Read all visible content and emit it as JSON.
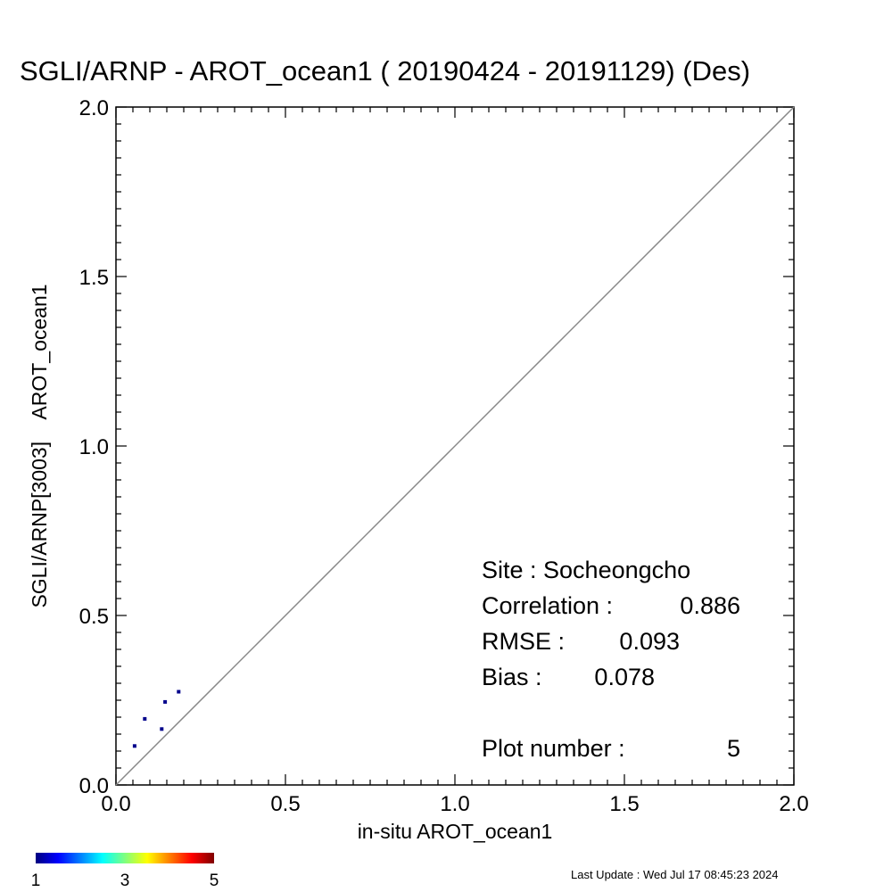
{
  "chart_data": {
    "type": "scatter",
    "title": "SGLI/ARNP - AROT_ocean1 ( 20190424 - 20191129) (Des)",
    "xlabel": "in-situ AROT_ocean1",
    "ylabel": "SGLI/ARNP[3003]    AROT_ocean1",
    "xlim": [
      0.0,
      2.0
    ],
    "ylim": [
      0.0,
      2.0
    ],
    "x_ticks": [
      "0.0",
      "0.5",
      "1.0",
      "1.5",
      "2.0"
    ],
    "y_ticks": [
      "0.0",
      "0.5",
      "1.0",
      "1.5",
      "2.0"
    ],
    "reference_line": "1:1",
    "grid": false,
    "point_color": "#00008b",
    "points": [
      {
        "x": 0.055,
        "y": 0.115
      },
      {
        "x": 0.085,
        "y": 0.195
      },
      {
        "x": 0.135,
        "y": 0.165
      },
      {
        "x": 0.145,
        "y": 0.245
      },
      {
        "x": 0.185,
        "y": 0.275
      }
    ],
    "stats": {
      "site": "Site : Socheongcho",
      "correlation_label": "Correlation :",
      "correlation": "0.886",
      "rmse_label": "RMSE :",
      "rmse": "0.093",
      "bias_label": "Bias :",
      "bias": "0.078",
      "plot_number_label": "Plot number :",
      "plot_number": "5"
    },
    "colorbar": {
      "colors": [
        "#00007f",
        "#0000ff",
        "#007fff",
        "#00ffff",
        "#7fff7f",
        "#ffff00",
        "#ff7f00",
        "#ff0000",
        "#7f0000"
      ],
      "labels": [
        "1",
        "3",
        "5"
      ],
      "range": [
        1,
        5
      ]
    }
  },
  "footer": {
    "last_update": "Last Update : Wed Jul 17 08:45:23 2024"
  }
}
